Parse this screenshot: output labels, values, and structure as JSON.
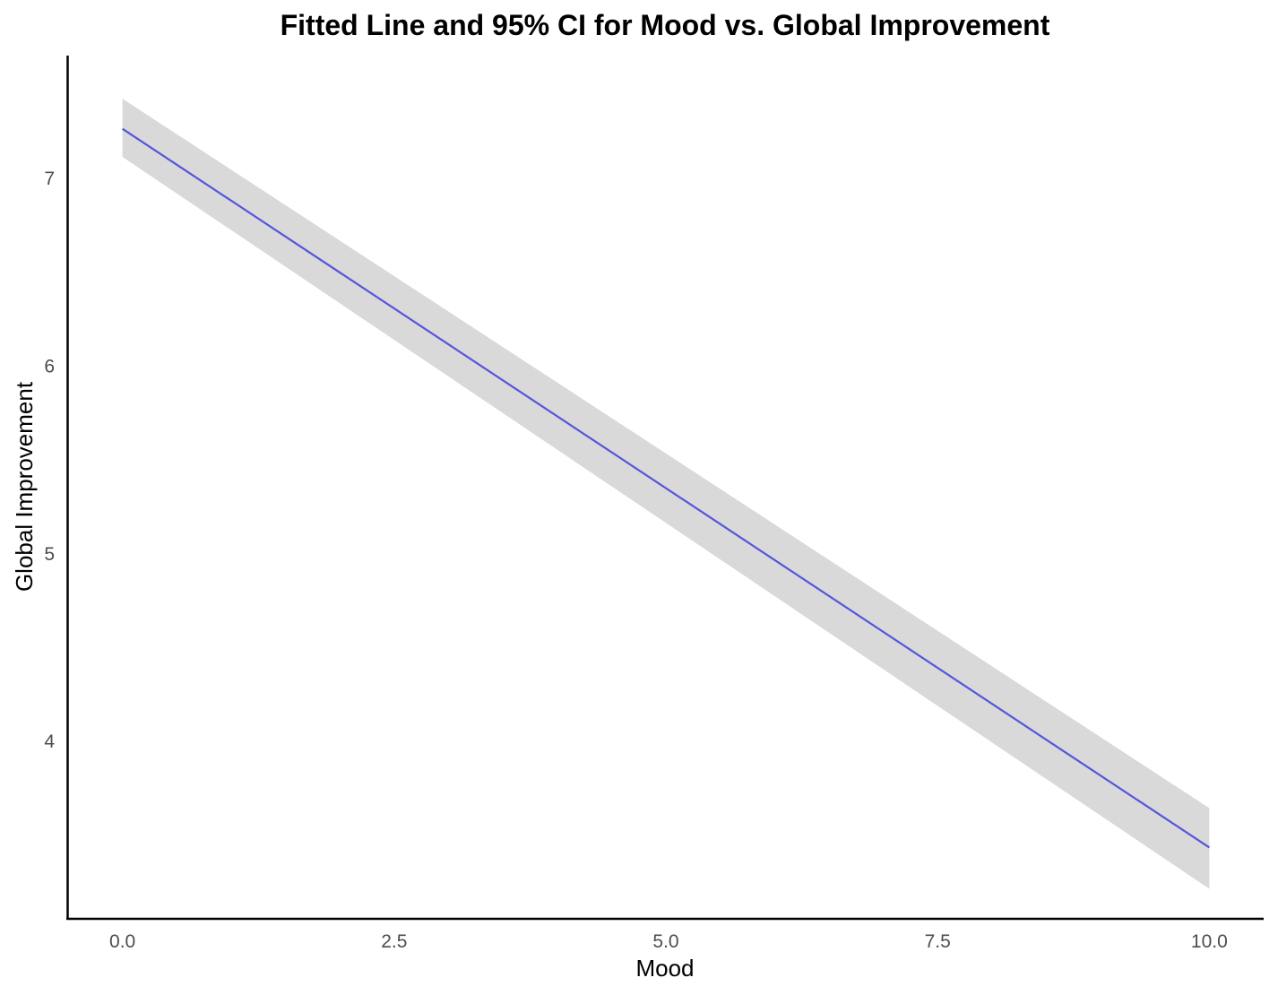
{
  "chart_data": {
    "type": "line",
    "title": "Fitted Line and 95% CI for Mood vs. Global Improvement",
    "xlabel": "Mood",
    "ylabel": "Global Improvement",
    "xlim": [
      -0.5,
      10.5
    ],
    "ylim": [
      3.05,
      7.65
    ],
    "x_ticks": [
      0,
      2.5,
      5,
      7.5,
      10
    ],
    "x_tick_labels": [
      "0.0",
      "2.5",
      "5.0",
      "7.5",
      "10.0"
    ],
    "y_ticks": [
      4,
      5,
      6,
      7
    ],
    "y_tick_labels": [
      "4",
      "5",
      "6",
      "7"
    ],
    "grid": false,
    "legend": "none",
    "series": [
      {
        "x": [
          0,
          10
        ],
        "y": [
          7.26,
          3.43
        ],
        "ci_lower": [
          7.11,
          3.21
        ],
        "ci_upper": [
          7.42,
          3.64
        ],
        "color": "#5555dd",
        "band_color": "#d9d9d9"
      }
    ]
  }
}
